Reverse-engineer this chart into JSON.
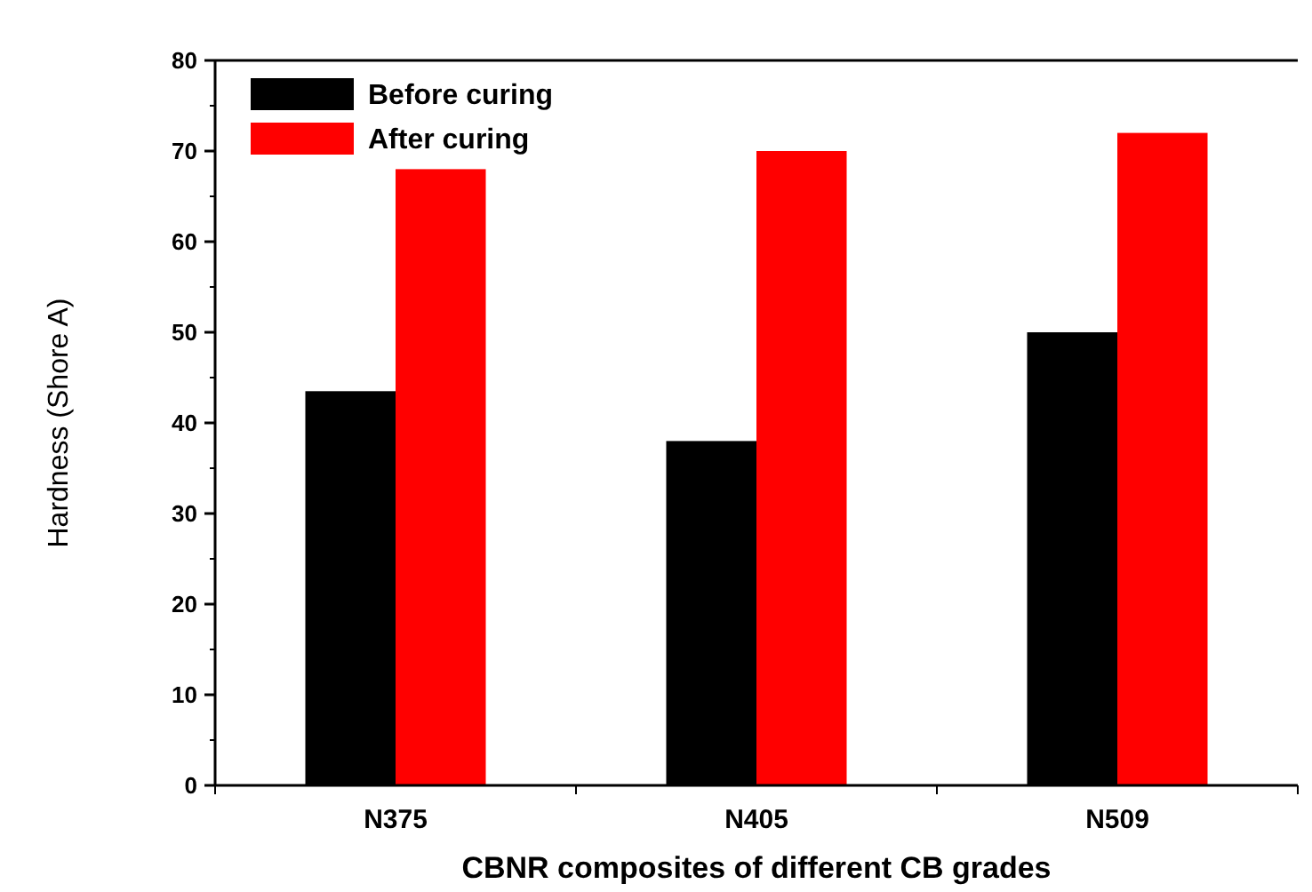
{
  "chart_data": {
    "type": "bar",
    "xlabel": "CBNR composites of different CB grades",
    "ylabel": "Hardness (Shore A)",
    "categories": [
      "N375",
      "N405",
      "N509"
    ],
    "series": [
      {
        "name": "Before curing",
        "color": "#000000",
        "values": [
          43.5,
          38,
          50
        ]
      },
      {
        "name": "After curing",
        "color": "#ff0000",
        "values": [
          68,
          70,
          72
        ]
      }
    ],
    "ylim": [
      0,
      80
    ],
    "yticks": [
      0,
      10,
      20,
      30,
      40,
      50,
      60,
      70,
      80
    ],
    "grid": false,
    "legend": "top left"
  }
}
